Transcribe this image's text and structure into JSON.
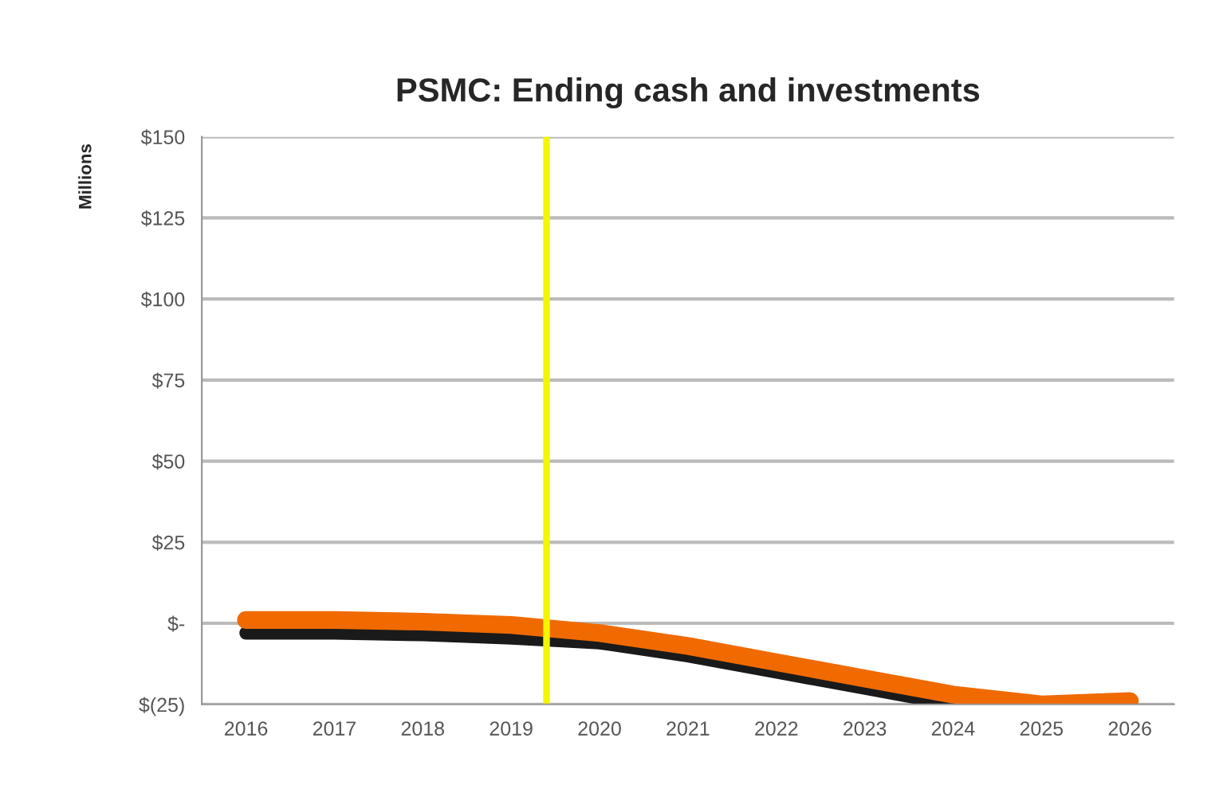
{
  "chart_data": {
    "type": "line",
    "title": "PSMC: Ending cash and investments",
    "ylabel": "Millions",
    "x": [
      2016,
      2017,
      2018,
      2019,
      2020,
      2021,
      2022,
      2023,
      2024,
      2025,
      2026
    ],
    "series": [
      {
        "color": "#1a1a1a",
        "values": [
          -3,
          -3,
          -3.5,
          -4.5,
          -6,
          -10,
          -15,
          -20,
          -25,
          null,
          null
        ]
      },
      {
        "color": "#f06a00",
        "values": [
          1,
          1,
          0.5,
          -0.5,
          -3,
          -7,
          -12,
          -17,
          -22,
          -25,
          -24
        ]
      }
    ],
    "xlim": [
      2015.5,
      2026.5
    ],
    "xticks": [
      2016,
      2017,
      2018,
      2019,
      2020,
      2021,
      2022,
      2023,
      2024,
      2025,
      2026
    ],
    "ylim": [
      -25,
      150
    ],
    "yticks": [
      {
        "value": -25,
        "label": "$(25)"
      },
      {
        "value": 0,
        "label": "$-"
      },
      {
        "value": 25,
        "label": "$25"
      },
      {
        "value": 50,
        "label": "$50"
      },
      {
        "value": 75,
        "label": "$75"
      },
      {
        "value": 100,
        "label": "$100"
      },
      {
        "value": 125,
        "label": "$125"
      },
      {
        "value": 150,
        "label": "$150"
      }
    ],
    "ref_lines": [
      {
        "axis": "x",
        "value": 2019.4,
        "color": "#f5f500"
      }
    ],
    "grid": "y",
    "legend": false
  }
}
